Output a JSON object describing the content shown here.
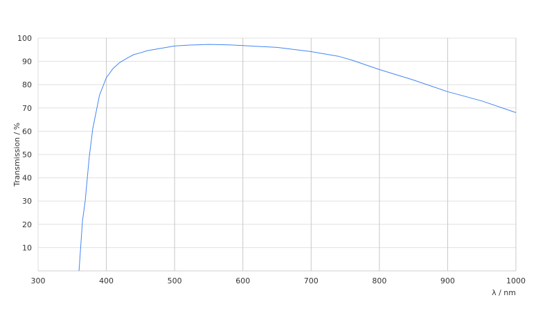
{
  "chart_data": {
    "type": "line",
    "title": "",
    "xlabel": "λ / nm",
    "ylabel": "Transmission / %",
    "xlim": [
      300,
      1000
    ],
    "ylim": [
      0,
      100
    ],
    "x_ticks": [
      "300",
      "400",
      "500",
      "600",
      "700",
      "800",
      "900",
      "1000"
    ],
    "y_ticks": [
      "10",
      "20",
      "30",
      "40",
      "50",
      "60",
      "70",
      "80",
      "90",
      "100"
    ],
    "grid": true,
    "line_color": "#4285f4",
    "series": [
      {
        "x": [
          360,
          365,
          369,
          375,
          380,
          390,
          400,
          410,
          420,
          430,
          440,
          450,
          460,
          480,
          500,
          520,
          550,
          580,
          600,
          650,
          700,
          740,
          760,
          800,
          850,
          900,
          950,
          1000
        ],
        "y": [
          0,
          21.5,
          30,
          49,
          61,
          75.5,
          83,
          87,
          89.6,
          91.3,
          92.9,
          93.7,
          94.6,
          95.6,
          96.6,
          97,
          97.3,
          97.1,
          96.8,
          96,
          94.2,
          92.2,
          90.5,
          86.5,
          82,
          77,
          73,
          68
        ]
      }
    ]
  }
}
